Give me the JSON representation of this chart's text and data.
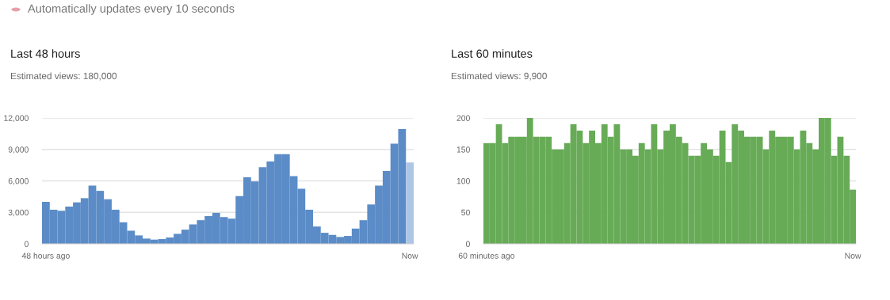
{
  "chart_data": [
    {
      "type": "bar",
      "title": "Last 48 hours",
      "subtitle": "Estimated views: 180,000",
      "annotations": [
        "Automatically updates every 10 seconds"
      ],
      "categories": [
        "48 hours ago",
        null,
        null,
        null,
        null,
        null,
        null,
        null,
        null,
        null,
        null,
        null,
        null,
        null,
        null,
        null,
        null,
        null,
        null,
        null,
        null,
        null,
        null,
        null,
        null,
        null,
        null,
        null,
        null,
        null,
        null,
        null,
        null,
        null,
        null,
        null,
        null,
        null,
        null,
        null,
        null,
        null,
        null,
        null,
        null,
        null,
        null,
        "Now"
      ],
      "values": [
        4000,
        3250,
        3150,
        3550,
        3950,
        4350,
        5550,
        5050,
        4250,
        3250,
        2050,
        1250,
        800,
        500,
        400,
        450,
        600,
        950,
        1350,
        1850,
        2250,
        2650,
        2950,
        2550,
        2400,
        4550,
        6350,
        5950,
        7300,
        7850,
        8550,
        8550,
        6450,
        5250,
        3250,
        1650,
        1050,
        850,
        650,
        750,
        1450,
        2250,
        3750,
        5550,
        6950,
        9550,
        10950,
        7750
      ],
      "colors": [
        "#5b8cc7",
        "#5b8cc7",
        "#5b8cc7",
        "#5b8cc7",
        "#5b8cc7",
        "#5b8cc7",
        "#5b8cc7",
        "#5b8cc7",
        "#5b8cc7",
        "#5b8cc7",
        "#5b8cc7",
        "#5b8cc7",
        "#5b8cc7",
        "#5b8cc7",
        "#5b8cc7",
        "#5b8cc7",
        "#5b8cc7",
        "#5b8cc7",
        "#5b8cc7",
        "#5b8cc7",
        "#5b8cc7",
        "#5b8cc7",
        "#5b8cc7",
        "#5b8cc7",
        "#5b8cc7",
        "#5b8cc7",
        "#5b8cc7",
        "#5b8cc7",
        "#5b8cc7",
        "#5b8cc7",
        "#5b8cc7",
        "#5b8cc7",
        "#5b8cc7",
        "#5b8cc7",
        "#5b8cc7",
        "#5b8cc7",
        "#5b8cc7",
        "#5b8cc7",
        "#5b8cc7",
        "#5b8cc7",
        "#5b8cc7",
        "#5b8cc7",
        "#5b8cc7",
        "#5b8cc7",
        "#5b8cc7",
        "#5b8cc7",
        "#5b8cc7",
        "#aec6e6"
      ],
      "ylim": [
        0,
        12000
      ],
      "yticks": [
        0,
        {
          "value": 3000,
          "label": "3,000"
        },
        {
          "value": 6000,
          "label": "6,000"
        },
        {
          "value": 9000,
          "label": "9,000"
        },
        {
          "value": 12000,
          "label": "12,000"
        }
      ],
      "grid": "y"
    },
    {
      "type": "bar",
      "title": "Last 60 minutes",
      "subtitle": "Estimated views: 9,900",
      "categories": [
        "60 minutes ago",
        null,
        null,
        null,
        null,
        null,
        null,
        null,
        null,
        null,
        null,
        null,
        null,
        null,
        null,
        null,
        null,
        null,
        null,
        null,
        null,
        null,
        null,
        null,
        null,
        null,
        null,
        null,
        null,
        null,
        null,
        null,
        null,
        null,
        null,
        null,
        null,
        null,
        null,
        null,
        null,
        null,
        null,
        null,
        null,
        null,
        null,
        null,
        null,
        null,
        null,
        null,
        null,
        null,
        null,
        null,
        null,
        null,
        null,
        "Now"
      ],
      "values": [
        160,
        160,
        190,
        160,
        170,
        170,
        170,
        200,
        170,
        170,
        170,
        150,
        150,
        160,
        190,
        180,
        160,
        180,
        160,
        190,
        170,
        190,
        150,
        150,
        140,
        160,
        150,
        190,
        150,
        180,
        190,
        170,
        160,
        140,
        140,
        160,
        150,
        140,
        180,
        130,
        190,
        180,
        170,
        170,
        170,
        150,
        180,
        170,
        170,
        170,
        150,
        180,
        160,
        150,
        200,
        200,
        140,
        170,
        140,
        86
      ],
      "color": "#67ab57",
      "ylim": [
        0,
        200
      ],
      "yticks": [
        0,
        50,
        100,
        150,
        200
      ],
      "grid": "y"
    }
  ]
}
